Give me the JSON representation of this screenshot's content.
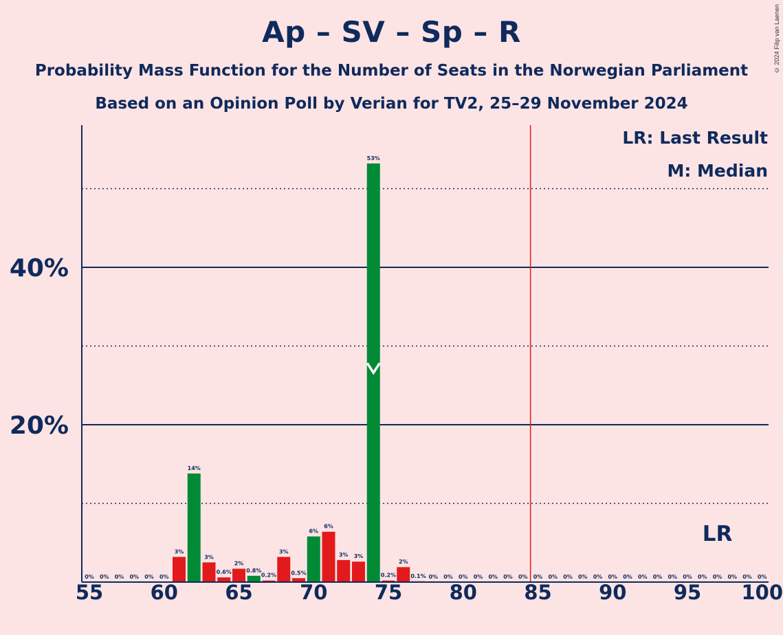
{
  "header": {
    "title": "Ap – SV – Sp – R",
    "subtitle1": "Probability Mass Function for the Number of Seats in the Norwegian Parliament",
    "subtitle2": "Based on an Opinion Poll by Verian for TV2, 25–29 November 2024",
    "copyright": "© 2024 Filip van Laenen"
  },
  "legend": {
    "lr": "LR: Last Result",
    "m": "M: Median"
  },
  "colors": {
    "background": "#fde4e4",
    "text": "#0f2a5c",
    "red": "#e31a1c",
    "green": "#008a36",
    "lastResultLine": "#e31a1c"
  },
  "chart_data": {
    "type": "bar",
    "x": [
      55,
      56,
      57,
      58,
      59,
      60,
      61,
      62,
      63,
      64,
      65,
      66,
      67,
      68,
      69,
      70,
      71,
      72,
      73,
      74,
      75,
      76,
      77,
      78,
      79,
      80,
      81,
      82,
      83,
      84,
      85,
      86,
      87,
      88,
      89,
      90,
      91,
      92,
      93,
      94,
      95,
      96,
      97,
      98,
      99,
      100
    ],
    "values": [
      0,
      0,
      0,
      0,
      0,
      0,
      3.2,
      13.8,
      2.5,
      0.6,
      1.7,
      0.8,
      0.2,
      3.2,
      0.5,
      5.8,
      6.4,
      2.8,
      2.6,
      53.2,
      0.2,
      1.9,
      0.1,
      0,
      0,
      0,
      0,
      0,
      0,
      0,
      0,
      0,
      0,
      0,
      0,
      0,
      0,
      0,
      0,
      0,
      0,
      0,
      0,
      0,
      0,
      0
    ],
    "labels": [
      "0%",
      "0%",
      "0%",
      "0%",
      "0%",
      "0%",
      "3%",
      "14%",
      "3%",
      "0.6%",
      "2%",
      "0.8%",
      "0.2%",
      "3%",
      "0.5%",
      "6%",
      "6%",
      "3%",
      "3%",
      "53%",
      "0.2%",
      "2%",
      "0.1%",
      "0%",
      "0%",
      "0%",
      "0%",
      "0%",
      "0%",
      "0%",
      "0%",
      "0%",
      "0%",
      "0%",
      "0%",
      "0%",
      "0%",
      "0%",
      "0%",
      "0%",
      "0%",
      "0%",
      "0%",
      "0%",
      "0%",
      "0%"
    ],
    "bar_colors": [
      "red",
      "red",
      "red",
      "red",
      "red",
      "red",
      "red",
      "green",
      "red",
      "red",
      "red",
      "green",
      "red",
      "red",
      "red",
      "green",
      "red",
      "red",
      "red",
      "green",
      "red",
      "red",
      "red",
      "red",
      "red",
      "red",
      "red",
      "red",
      "red",
      "red",
      "red",
      "red",
      "red",
      "red",
      "red",
      "red",
      "red",
      "red",
      "red",
      "red",
      "red",
      "red",
      "red",
      "red",
      "red",
      "red"
    ],
    "xticks": [
      55,
      60,
      65,
      70,
      75,
      80,
      85,
      90,
      95,
      100
    ],
    "xtick_labels": [
      "55",
      "60",
      "65",
      "70",
      "75",
      "80",
      "85",
      "90",
      "95",
      "100"
    ],
    "yticks_major": [
      20,
      40
    ],
    "ytick_labels": [
      "20%",
      "40%"
    ],
    "yticks_minor": [
      10,
      30,
      50
    ],
    "ylim": [
      0,
      58
    ],
    "xlim": [
      55,
      100
    ],
    "median": 74,
    "last_result": 85,
    "lr_marker_x": 97,
    "lr_marker_label": "LR",
    "legend_position": "top-right"
  }
}
